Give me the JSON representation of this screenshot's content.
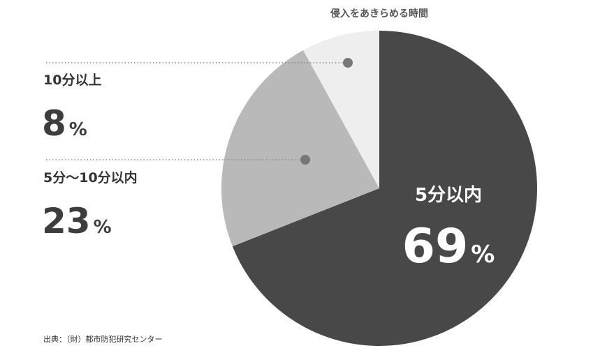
{
  "chart_data": {
    "type": "pie",
    "title": "侵入をあきらめる時間",
    "categories": [
      "5分以内",
      "5分〜10分以内",
      "10分以上"
    ],
    "values": [
      69,
      23,
      8
    ],
    "unit": "%",
    "colors": [
      "#484848",
      "#b9b9b9",
      "#eeeeee"
    ],
    "start": "12 o'clock",
    "direction": "clockwise"
  },
  "labels": [
    {
      "category": "5分以内",
      "value": "69",
      "unit": "%"
    },
    {
      "category": "5分〜10分以内",
      "value": "23",
      "unit": "%"
    },
    {
      "category": "10分以上",
      "value": "8",
      "unit": "%"
    }
  ],
  "source": "出典：（財）都市防犯研究センター"
}
